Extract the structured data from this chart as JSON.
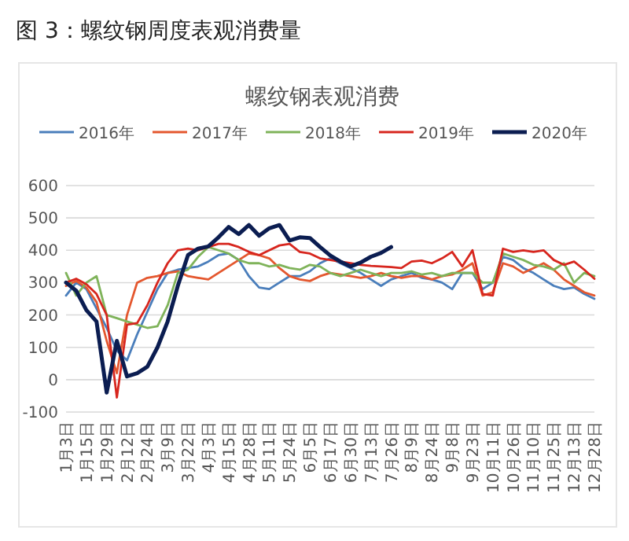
{
  "chart_data": {
    "type": "line",
    "title": "图 3：螺纹钢周度表观消费量",
    "subtitle": "螺纹钢表观消费",
    "categories": [
      "1月3日",
      null,
      "1月15日",
      null,
      "1月29日",
      null,
      "2月12日",
      null,
      "2月24日",
      null,
      "3月9日",
      null,
      "3月22日",
      null,
      "4月3日",
      null,
      "4月15日",
      null,
      "4月28日",
      null,
      "5月11日",
      null,
      "5月24日",
      null,
      "6月5日",
      null,
      "6月17日",
      null,
      "6月30日",
      null,
      "7月13日",
      null,
      "7月26日",
      null,
      "8月9日",
      null,
      "8月24日",
      null,
      "9月8日",
      null,
      "9月23日",
      null,
      "10月11日",
      null,
      "10月26日",
      null,
      "11月10日",
      null,
      "11月25日",
      null,
      "12月13日",
      null,
      "12月28日"
    ],
    "ylim": [
      -100,
      600
    ],
    "yticks": [
      -100,
      0,
      100,
      200,
      300,
      400,
      500,
      600
    ],
    "grid": "y",
    "legend": "top",
    "series": [
      {
        "name": "2016年",
        "color": "#4a7ebb",
        "values": [
          260,
          300,
          280,
          220,
          160,
          90,
          60,
          140,
          210,
          280,
          330,
          340,
          345,
          350,
          365,
          385,
          390,
          370,
          320,
          285,
          280,
          300,
          320,
          320,
          335,
          360,
          375,
          360,
          345,
          330,
          310,
          290,
          310,
          320,
          330,
          315,
          310,
          300,
          280,
          330,
          330,
          280,
          300,
          380,
          370,
          345,
          330,
          310,
          290,
          280,
          285,
          265,
          250
        ]
      },
      {
        "name": "2017年",
        "color": "#e4572e",
        "values": [
          290,
          305,
          285,
          240,
          120,
          20,
          200,
          300,
          315,
          320,
          330,
          335,
          320,
          315,
          310,
          330,
          350,
          370,
          390,
          385,
          375,
          345,
          320,
          310,
          305,
          320,
          330,
          325,
          320,
          315,
          320,
          330,
          320,
          315,
          320,
          320,
          310,
          320,
          325,
          340,
          360,
          260,
          270,
          360,
          350,
          330,
          345,
          360,
          340,
          310,
          290,
          270,
          260
        ]
      },
      {
        "name": "2018年",
        "color": "#7fb35a",
        "values": [
          330,
          260,
          300,
          320,
          200,
          190,
          180,
          170,
          160,
          165,
          230,
          330,
          340,
          380,
          410,
          400,
          390,
          370,
          360,
          360,
          350,
          355,
          345,
          340,
          355,
          350,
          330,
          320,
          330,
          340,
          330,
          320,
          330,
          330,
          335,
          325,
          330,
          320,
          330,
          330,
          330,
          300,
          300,
          390,
          380,
          370,
          355,
          350,
          340,
          360,
          300,
          330,
          320
        ]
      },
      {
        "name": "2019年",
        "color": "#d7261e",
        "values": [
          300,
          312,
          295,
          265,
          200,
          -55,
          170,
          175,
          230,
          300,
          360,
          400,
          405,
          400,
          410,
          420,
          420,
          410,
          395,
          385,
          400,
          415,
          420,
          395,
          390,
          375,
          370,
          365,
          360,
          355,
          352,
          350,
          348,
          345,
          365,
          368,
          360,
          375,
          395,
          350,
          400,
          265,
          260,
          405,
          395,
          400,
          395,
          400,
          370,
          355,
          365,
          340,
          312
        ]
      },
      {
        "name": "2020年",
        "color": "#0b1d51",
        "values": [
          300,
          275,
          215,
          180,
          -40,
          120,
          10,
          20,
          40,
          100,
          180,
          290,
          385,
          405,
          412,
          440,
          472,
          450,
          478,
          445,
          468,
          478,
          430,
          440,
          438,
          410,
          384,
          365,
          350,
          362,
          380,
          392,
          410,
          null,
          null,
          null,
          null,
          null,
          null,
          null,
          null,
          null,
          null,
          null,
          null,
          null,
          null,
          null,
          null,
          null,
          null,
          null,
          null
        ]
      }
    ]
  }
}
